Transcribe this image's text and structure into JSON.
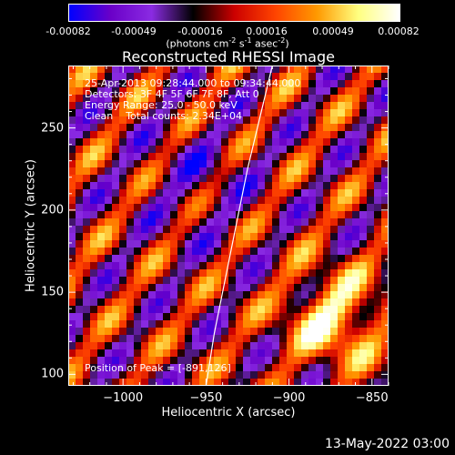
{
  "colorbar": {
    "ticks": [
      "-0.00082",
      "-0.00049",
      "-0.00016",
      "0.00016",
      "0.00049",
      "0.00082"
    ],
    "units_prefix": "(photons cm",
    "units_exp1": "-2",
    "units_mid1": " s",
    "units_exp2": "-1",
    "units_mid2": " asec",
    "units_exp3": "-2",
    "units_suffix": ")"
  },
  "annotations": {
    "time": "25-Apr-2013 09:28:44.000 to 09:34:44.000",
    "detectors": "Detectors: 3F 4F 5F 6F 7F 8F, Att 0",
    "energy": "Energy Range: 25.0 - 50.0 keV",
    "clean": "Clean    Total counts: 2.34E+04",
    "peak": "Position of Peak = [-891,126]"
  },
  "footer": {
    "date": "13-May-2022 03:00"
  },
  "chart_data": {
    "type": "heatmap",
    "title": "Reconstructed RHESSI Image",
    "xlabel": "Heliocentric X (arcsec)",
    "ylabel": "Heliocentric Y (arcsec)",
    "xlim": [
      -1033,
      -840
    ],
    "ylim": [
      93,
      288
    ],
    "xticks": [
      -1000,
      -950,
      -900,
      -850
    ],
    "xtick_labels": [
      "−1000",
      "−950",
      "−900",
      "−850"
    ],
    "yticks": [
      100,
      150,
      200,
      250
    ],
    "ytick_labels": [
      "100",
      "150",
      "200",
      "250"
    ],
    "zlim": [
      -0.00082,
      0.00082
    ],
    "peak": [
      -891,
      126
    ],
    "limb_curve_x": [
      -910,
      -925,
      -935,
      -945,
      -950
    ],
    "limb_curve_y": [
      288,
      225,
      175,
      125,
      93
    ],
    "colormap": [
      "#0000ff",
      "#6a00c8",
      "#8a2be2",
      "#000000",
      "#cc0000",
      "#ff4400",
      "#ff9900",
      "#ffff80",
      "#ffffff"
    ]
  }
}
